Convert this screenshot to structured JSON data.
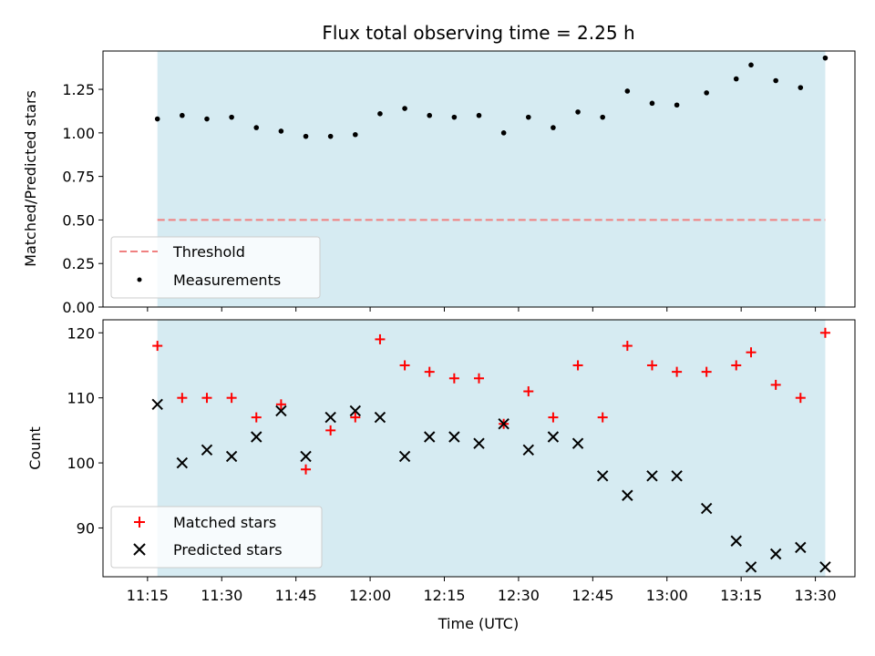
{
  "chart_data": [
    {
      "type": "scatter",
      "title": "Flux total observing time = 2.25 h",
      "xlabel": "",
      "ylabel": "Matched/Predicted stars",
      "ylim": [
        0,
        1.47
      ],
      "yticks": [
        0.0,
        0.25,
        0.5,
        0.75,
        1.0,
        1.25
      ],
      "ytick_labels": [
        "0.00",
        "0.25",
        "0.50",
        "0.75",
        "1.00",
        "1.25"
      ],
      "threshold": {
        "name": "Threshold",
        "value": 0.5,
        "color": "#f08080",
        "x_start": "11:17",
        "x_end": "13:32"
      },
      "shaded_region": {
        "start": "11:17",
        "end": "13:32",
        "color": "#add8e6"
      },
      "series": [
        {
          "name": "Measurements",
          "color": "#000000",
          "marker": "dot",
          "x": [
            "11:17",
            "11:22",
            "11:27",
            "11:32",
            "11:37",
            "11:42",
            "11:47",
            "11:52",
            "11:57",
            "12:02",
            "12:07",
            "12:12",
            "12:17",
            "12:22",
            "12:27",
            "12:32",
            "12:37",
            "12:42",
            "12:47",
            "12:52",
            "12:57",
            "13:02",
            "13:08",
            "13:14",
            "13:17",
            "13:22",
            "13:27",
            "13:32"
          ],
          "values": [
            1.08,
            1.1,
            1.08,
            1.09,
            1.03,
            1.01,
            0.98,
            0.98,
            0.99,
            1.11,
            1.14,
            1.1,
            1.09,
            1.1,
            1.0,
            1.09,
            1.03,
            1.12,
            1.09,
            1.24,
            1.17,
            1.16,
            1.23,
            1.31,
            1.39,
            1.3,
            1.26,
            1.43
          ]
        }
      ],
      "legend": {
        "position": "lower-left",
        "entries": [
          "Threshold",
          "Measurements"
        ]
      }
    },
    {
      "type": "scatter",
      "title": "",
      "xlabel": "Time (UTC)",
      "ylabel": "Count",
      "ylim": [
        82.5,
        122
      ],
      "yticks": [
        90,
        100,
        110,
        120
      ],
      "ytick_labels": [
        "90",
        "100",
        "110",
        "120"
      ],
      "xticks": [
        "11:15",
        "11:30",
        "11:45",
        "12:00",
        "12:15",
        "12:30",
        "12:45",
        "13:00",
        "13:15",
        "13:30"
      ],
      "shaded_region": {
        "start": "11:17",
        "end": "13:32",
        "color": "#add8e6"
      },
      "series": [
        {
          "name": "Matched stars",
          "color": "#ff0000",
          "marker": "plus",
          "x": [
            "11:17",
            "11:22",
            "11:27",
            "11:32",
            "11:37",
            "11:42",
            "11:47",
            "11:52",
            "11:57",
            "12:02",
            "12:07",
            "12:12",
            "12:17",
            "12:22",
            "12:27",
            "12:32",
            "12:37",
            "12:42",
            "12:47",
            "12:52",
            "12:57",
            "13:02",
            "13:08",
            "13:14",
            "13:17",
            "13:22",
            "13:27",
            "13:32"
          ],
          "values": [
            118,
            110,
            110,
            110,
            107,
            109,
            99,
            105,
            107,
            119,
            115,
            114,
            113,
            113,
            106,
            111,
            107,
            115,
            107,
            118,
            115,
            114,
            114,
            115,
            117,
            112,
            110,
            120
          ]
        },
        {
          "name": "Predicted stars",
          "color": "#000000",
          "marker": "x",
          "x": [
            "11:17",
            "11:22",
            "11:27",
            "11:32",
            "11:37",
            "11:42",
            "11:47",
            "11:52",
            "11:57",
            "12:02",
            "12:07",
            "12:12",
            "12:17",
            "12:22",
            "12:27",
            "12:32",
            "12:37",
            "12:42",
            "12:47",
            "12:52",
            "12:57",
            "13:02",
            "13:08",
            "13:14",
            "13:17",
            "13:22",
            "13:27",
            "13:32"
          ],
          "values": [
            109,
            100,
            102,
            101,
            104,
            108,
            101,
            107,
            108,
            107,
            101,
            104,
            104,
            103,
            106,
            102,
            104,
            103,
            98,
            95,
            98,
            98,
            93,
            88,
            84,
            86,
            87,
            84
          ]
        }
      ],
      "legend": {
        "position": "lower-left",
        "entries": [
          "Matched stars",
          "Predicted stars"
        ]
      }
    }
  ]
}
